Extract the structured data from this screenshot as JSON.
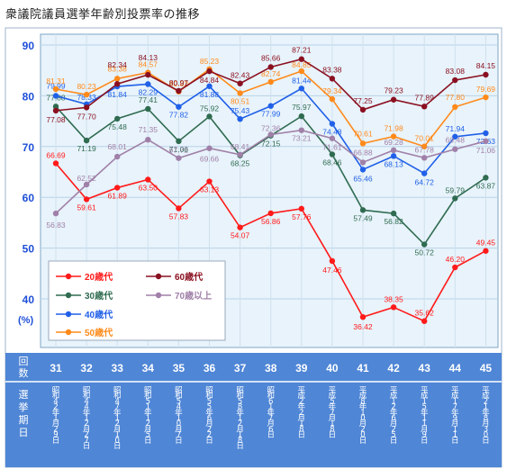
{
  "page": {
    "title": "衆議院議員選挙年齢別投票率の推移"
  },
  "chart_data": {
    "type": "line",
    "title": "衆議院議員選挙年齢別投票率の推移",
    "ylabel": "(%)",
    "ylim": [
      35,
      92
    ],
    "yticks": [
      40,
      50,
      60,
      70,
      80,
      90
    ],
    "grid": true,
    "legend_position": "bottom-left",
    "categories": [
      "31",
      "32",
      "33",
      "34",
      "35",
      "36",
      "37",
      "38",
      "39",
      "40",
      "41",
      "42",
      "43",
      "44",
      "45"
    ],
    "row_labels": {
      "round": "回数",
      "date": "選挙期日"
    },
    "dates": [
      "昭和42年1月29日",
      "昭和44年12月27日",
      "昭和47年12月10日",
      "昭和51年12月5日",
      "昭和54年10月7日",
      "昭和55年6月22日",
      "昭和58年12月18日",
      "昭和61年7月6日",
      "平成2年2月18日",
      "平成5年7月18日",
      "平成8年10月20日",
      "平成12年6月25日",
      "平成15年11月9日",
      "平成17年9月11日",
      "平成21年8月30日"
    ],
    "series": [
      {
        "name": "20歳代",
        "color": "#ff1a1a",
        "values": [
          66.69,
          59.61,
          61.89,
          63.5,
          57.83,
          63.13,
          54.07,
          56.86,
          57.76,
          47.46,
          36.42,
          38.35,
          35.62,
          46.2,
          49.45
        ]
      },
      {
        "name": "30歳代",
        "color": "#2f6b50",
        "values": [
          77.88,
          71.19,
          75.48,
          77.41,
          71.06,
          75.92,
          68.25,
          72.15,
          75.97,
          68.46,
          57.49,
          56.82,
          50.72,
          59.79,
          63.87
        ]
      },
      {
        "name": "40歳代",
        "color": "#2060e8",
        "values": [
          79.99,
          78.33,
          81.84,
          82.29,
          77.82,
          81.88,
          75.43,
          77.99,
          81.44,
          74.48,
          65.46,
          68.13,
          64.72,
          71.94,
          72.63
        ]
      },
      {
        "name": "50歳代",
        "color": "#ff8a1a",
        "values": [
          81.31,
          80.23,
          83.38,
          84.57,
          80.82,
          85.23,
          80.51,
          82.74,
          84.85,
          79.34,
          70.61,
          71.98,
          70.01,
          77.8,
          79.69
        ]
      },
      {
        "name": "60歳代",
        "color": "#8a1020",
        "values": [
          77.08,
          77.7,
          82.34,
          84.13,
          80.97,
          84.84,
          82.43,
          85.66,
          87.21,
          83.38,
          77.25,
          79.23,
          77.89,
          83.08,
          84.15
        ]
      },
      {
        "name": "70歳以上",
        "color": "#a080a8",
        "values": [
          56.83,
          62.52,
          68.01,
          71.35,
          67.72,
          69.66,
          68.41,
          72.36,
          73.21,
          71.61,
          66.88,
          69.28,
          67.78,
          69.48,
          71.06
        ]
      }
    ],
    "colors": {
      "plot_bg": "#e8f3fb",
      "band_bg": "#4f86d6",
      "accent_text": "#1e4fd8"
    }
  }
}
